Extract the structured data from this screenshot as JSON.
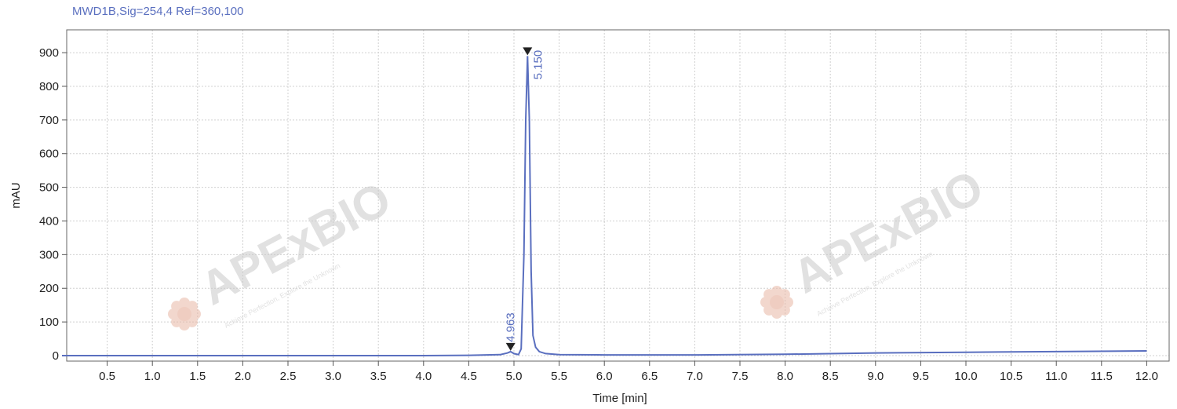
{
  "chart_data": {
    "type": "line",
    "title": "MWD1B,Sig=254,4  Ref=360,100",
    "xlabel": "Time [min]",
    "ylabel": "mAU",
    "xlim": [
      0,
      12.1
    ],
    "ylim": [
      -15,
      960
    ],
    "x_ticks": [
      "0.5",
      "1.0",
      "1.5",
      "2.0",
      "2.5",
      "3.0",
      "3.5",
      "4.0",
      "4.5",
      "5.0",
      "5.5",
      "6.0",
      "6.5",
      "7.0",
      "7.5",
      "8.0",
      "8.5",
      "9.0",
      "9.5",
      "10.0",
      "10.5",
      "11.0",
      "11.5",
      "12.0"
    ],
    "y_ticks": [
      "0",
      "100",
      "200",
      "300",
      "400",
      "500",
      "600",
      "700",
      "800",
      "900"
    ],
    "grid": true,
    "line_color": "#5a6fbf",
    "series": [
      {
        "x": [
          0,
          1.0,
          2.0,
          3.0,
          4.0,
          4.5,
          4.85,
          4.93,
          4.963,
          5.0,
          5.05,
          5.08,
          5.11,
          5.13,
          5.15,
          5.17,
          5.19,
          5.21,
          5.24,
          5.28,
          5.35,
          5.5,
          6.0,
          7.0,
          8.0,
          9.0,
          10.0,
          11.0,
          12.0
        ],
        "y": [
          0,
          0,
          0,
          0,
          0,
          1,
          3,
          8,
          12,
          6,
          3,
          20,
          300,
          700,
          890,
          700,
          250,
          60,
          25,
          12,
          6,
          3,
          2,
          2,
          4,
          8,
          10,
          12,
          14
        ]
      }
    ],
    "peaks": [
      {
        "label": "4.963",
        "x": 4.963,
        "y": 12
      },
      {
        "label": "5.150",
        "x": 5.15,
        "y": 890
      }
    ]
  },
  "watermarks": [
    {
      "brand": "APExBIO",
      "tagline": "Achieve Perfection, Explore the Unknown"
    },
    {
      "brand": "APExBIO",
      "tagline": "Achieve Perfection, Explore the Unknown"
    }
  ]
}
